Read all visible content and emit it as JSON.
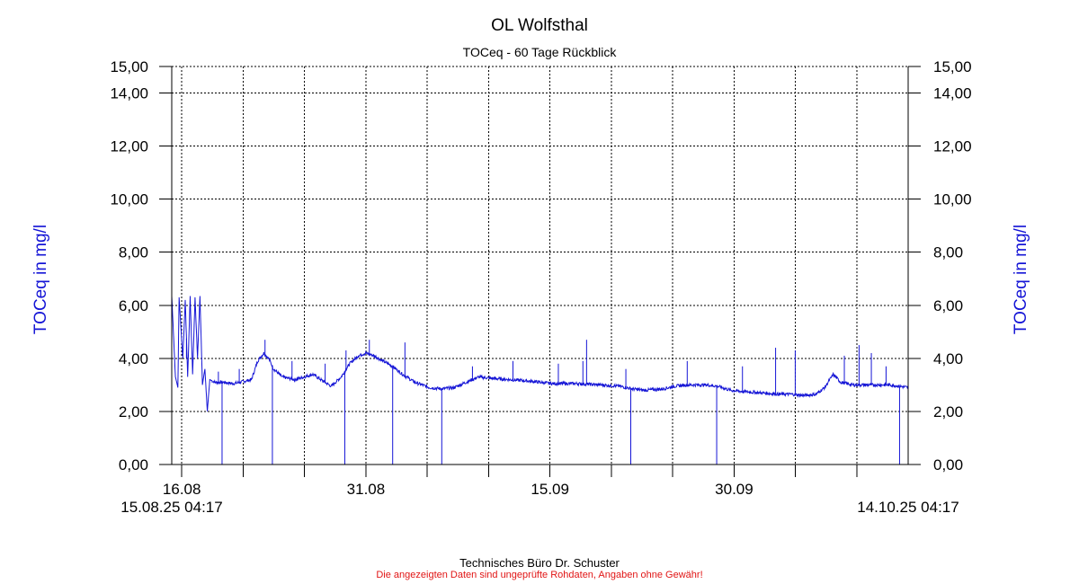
{
  "title": "OL Wolfsthal",
  "subtitle": "TOCeq - 60 Tage Rückblick",
  "footer": {
    "credit": "Technisches Büro Dr. Schuster",
    "disclaimer": "Die angezeigten Daten sind ungeprüfte Rohdaten, Angaben ohne Gewähr!"
  },
  "colors": {
    "series": "#1515d6",
    "text": "#000000",
    "disclaimer": "#e11515",
    "axis_label": "#1515d6"
  },
  "chart_data": {
    "type": "line",
    "title": "OL Wolfsthal",
    "subtitle": "TOCeq - 60 Tage Rückblick",
    "ylabel": "TOCeq in mg/l",
    "ylabel_right": "TOCeq in mg/l",
    "ylim": [
      0,
      15
    ],
    "yticks": [
      "0,00",
      "2,00",
      "4,00",
      "6,00",
      "8,00",
      "10,00",
      "12,00",
      "14,00",
      "15,00"
    ],
    "ytick_values": [
      0,
      2,
      4,
      6,
      8,
      10,
      12,
      14,
      15
    ],
    "x_start": "15.08.25 04:17",
    "x_end": "14.10.25 04:17",
    "x_range_days": [
      0,
      60
    ],
    "xtick_labels": [
      {
        "day": 0.82,
        "label": "16.08"
      },
      {
        "day": 15.82,
        "label": "31.08"
      },
      {
        "day": 30.82,
        "label": "15.09"
      },
      {
        "day": 45.82,
        "label": "30.09"
      }
    ],
    "grid_days": [
      0.82,
      5.82,
      10.82,
      15.82,
      20.82,
      25.82,
      30.82,
      35.82,
      40.82,
      45.82,
      50.82,
      55.82
    ],
    "grid": true,
    "series": [
      {
        "points": [
          [
            0.0,
            6.35
          ],
          [
            0.3,
            3.3
          ],
          [
            0.5,
            2.9
          ],
          [
            0.6,
            6.3
          ],
          [
            0.9,
            4.0
          ],
          [
            1.1,
            6.2
          ],
          [
            1.3,
            3.3
          ],
          [
            1.5,
            6.35
          ],
          [
            1.7,
            3.4
          ],
          [
            1.9,
            6.3
          ],
          [
            2.1,
            4.0
          ],
          [
            2.3,
            6.35
          ],
          [
            2.5,
            3.0
          ],
          [
            2.7,
            3.6
          ],
          [
            2.9,
            2.0
          ],
          [
            3.1,
            3.2
          ],
          [
            3.5,
            3.1
          ],
          [
            4.2,
            3.1
          ],
          [
            5.0,
            3.05
          ],
          [
            5.6,
            3.1
          ],
          [
            6.5,
            3.2
          ],
          [
            7.0,
            3.9
          ],
          [
            7.5,
            4.2
          ],
          [
            7.9,
            4.0
          ],
          [
            8.3,
            3.6
          ],
          [
            9.0,
            3.3
          ],
          [
            10.0,
            3.2
          ],
          [
            10.8,
            3.3
          ],
          [
            11.5,
            3.4
          ],
          [
            12.3,
            3.15
          ],
          [
            13.0,
            2.95
          ],
          [
            13.8,
            3.3
          ],
          [
            14.5,
            3.8
          ],
          [
            15.2,
            4.1
          ],
          [
            15.8,
            4.2
          ],
          [
            16.5,
            4.1
          ],
          [
            17.2,
            3.9
          ],
          [
            18.0,
            3.7
          ],
          [
            18.8,
            3.4
          ],
          [
            19.8,
            3.1
          ],
          [
            21.0,
            2.9
          ],
          [
            22.0,
            2.85
          ],
          [
            23.0,
            2.9
          ],
          [
            24.0,
            3.1
          ],
          [
            25.0,
            3.3
          ],
          [
            26.0,
            3.25
          ],
          [
            27.5,
            3.2
          ],
          [
            29.0,
            3.15
          ],
          [
            31.0,
            3.05
          ],
          [
            33.0,
            3.05
          ],
          [
            35.0,
            3.0
          ],
          [
            36.5,
            2.95
          ],
          [
            37.5,
            2.85
          ],
          [
            38.5,
            2.8
          ],
          [
            40.0,
            2.85
          ],
          [
            41.0,
            2.95
          ],
          [
            42.0,
            3.0
          ],
          [
            43.5,
            3.0
          ],
          [
            44.5,
            2.95
          ],
          [
            45.5,
            2.8
          ],
          [
            46.5,
            2.75
          ],
          [
            48.0,
            2.7
          ],
          [
            49.5,
            2.65
          ],
          [
            50.5,
            2.65
          ],
          [
            51.5,
            2.6
          ],
          [
            52.5,
            2.65
          ],
          [
            53.2,
            2.9
          ],
          [
            53.9,
            3.4
          ],
          [
            54.5,
            3.1
          ],
          [
            55.5,
            3.0
          ],
          [
            57.0,
            3.0
          ],
          [
            58.5,
            3.0
          ],
          [
            59.3,
            2.95
          ],
          [
            60.0,
            2.9
          ]
        ],
        "spikes": [
          [
            1.2,
            4.0
          ],
          [
            3.8,
            3.5
          ],
          [
            5.5,
            3.6
          ],
          [
            7.6,
            4.7
          ],
          [
            9.8,
            3.9
          ],
          [
            12.5,
            3.8
          ],
          [
            14.2,
            4.3
          ],
          [
            16.1,
            4.7
          ],
          [
            19.0,
            4.6
          ],
          [
            24.5,
            3.7
          ],
          [
            27.8,
            3.9
          ],
          [
            31.5,
            3.8
          ],
          [
            33.5,
            3.9
          ],
          [
            33.8,
            4.7
          ],
          [
            37.0,
            3.6
          ],
          [
            42.0,
            3.9
          ],
          [
            46.5,
            3.7
          ],
          [
            49.2,
            4.4
          ],
          [
            50.8,
            4.3
          ],
          [
            54.8,
            4.1
          ],
          [
            56.0,
            4.5
          ],
          [
            57.0,
            4.2
          ],
          [
            58.2,
            3.7
          ]
        ],
        "dropouts": [
          [
            4.1,
            0.0
          ],
          [
            8.2,
            0.0
          ],
          [
            14.1,
            0.0
          ],
          [
            18.0,
            0.0
          ],
          [
            22.0,
            0.0
          ],
          [
            37.4,
            0.0
          ],
          [
            44.4,
            0.0
          ],
          [
            59.3,
            0.0
          ]
        ]
      }
    ]
  }
}
